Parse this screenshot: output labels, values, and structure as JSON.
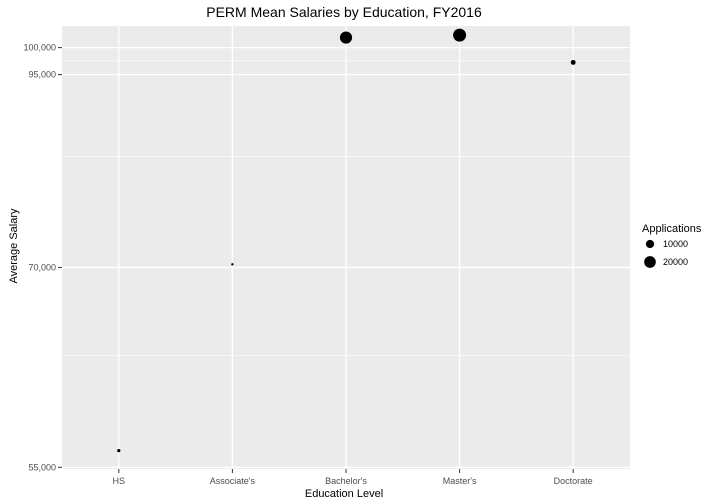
{
  "chart_data": {
    "type": "scatter",
    "title": "PERM Mean Salaries by Education, FY2016",
    "xlabel": "Education Level",
    "ylabel": "Average Salary",
    "categories": [
      "HS",
      "Associate's",
      "Bachelor's",
      "Master's",
      "Doctorate"
    ],
    "y_ticks": [
      55000,
      70000,
      95000,
      100000
    ],
    "y_tick_labels": [
      "55,000",
      "70,000",
      "95,000",
      "100,000"
    ],
    "ylim": [
      54900,
      104400
    ],
    "y_scale": "reciprocal",
    "points": [
      {
        "category": "HS",
        "y": 56000,
        "size": 1500
      },
      {
        "category": "Associate's",
        "y": 70300,
        "size": 300
      },
      {
        "category": "Bachelor's",
        "y": 102000,
        "size": 22000
      },
      {
        "category": "Master's",
        "y": 102500,
        "size": 25000
      },
      {
        "category": "Doctorate",
        "y": 97200,
        "size": 3500
      }
    ],
    "legend": {
      "title": "Applications",
      "position": "right",
      "entries": [
        {
          "label": "10000",
          "size": 10000
        },
        {
          "label": "20000",
          "size": 20000
        }
      ]
    },
    "grid": true,
    "colors": {
      "panel": "#ebebeb",
      "grid_major": "#ffffff",
      "point": "#000000"
    }
  }
}
